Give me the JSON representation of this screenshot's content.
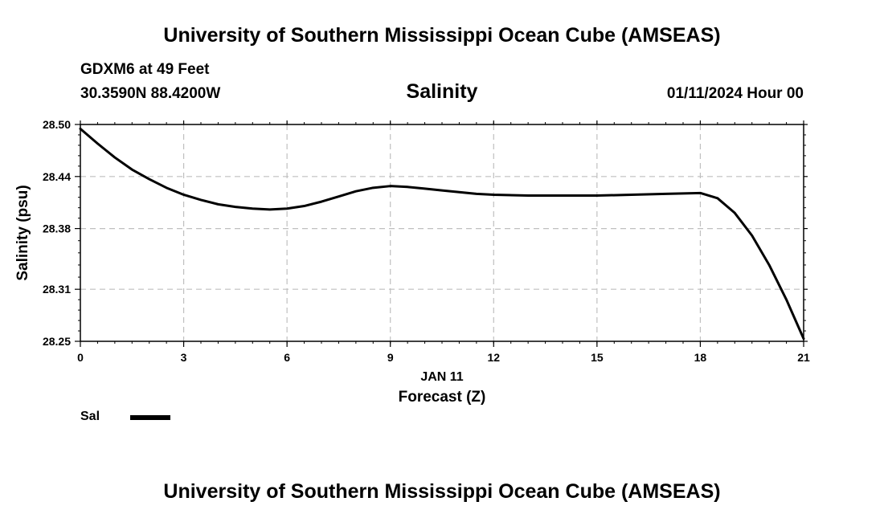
{
  "header": {
    "title": "University of Southern Mississippi Ocean Cube (AMSEAS)",
    "station": "GDXM6 at 49 Feet",
    "coords": "30.3590N  88.4200W",
    "run_time": "01/11/2024 Hour 00"
  },
  "footer": {
    "title": "University of Southern Mississippi Ocean Cube (AMSEAS)"
  },
  "legend": {
    "label": "Sal"
  },
  "colors": {
    "line": "#000000",
    "grid": "#bfbfbf"
  },
  "chart_data": {
    "type": "line",
    "title": "Salinity",
    "xlabel": "Forecast (Z)",
    "date_label": "JAN 11",
    "ylabel": "Salinity (psu)",
    "xlim": [
      0,
      21
    ],
    "ylim": [
      28.25,
      28.5
    ],
    "x_ticks": [
      0,
      3,
      6,
      9,
      12,
      15,
      18,
      21
    ],
    "y_ticks": [
      28.25,
      28.31,
      28.38,
      28.44,
      28.5
    ],
    "y_tick_labels": [
      "28.25",
      "28.31",
      "28.38",
      "28.44",
      "28.50"
    ],
    "grid": true,
    "series": [
      {
        "name": "Sal",
        "x": [
          0,
          0.5,
          1,
          1.5,
          2,
          2.5,
          3,
          3.5,
          4,
          4.5,
          5,
          5.5,
          6,
          6.5,
          7,
          7.5,
          8,
          8.5,
          9,
          9.5,
          10,
          10.5,
          11,
          11.5,
          12,
          13,
          14,
          15,
          16,
          17,
          18,
          18.5,
          19,
          19.5,
          20,
          20.5,
          21
        ],
        "values": [
          28.495,
          28.478,
          28.462,
          28.448,
          28.437,
          28.427,
          28.419,
          28.413,
          28.408,
          28.405,
          28.403,
          28.402,
          28.403,
          28.406,
          28.411,
          28.417,
          28.423,
          28.427,
          28.429,
          28.428,
          28.426,
          28.424,
          28.422,
          28.42,
          28.419,
          28.418,
          28.418,
          28.418,
          28.419,
          28.42,
          28.421,
          28.415,
          28.398,
          28.372,
          28.338,
          28.298,
          28.253
        ]
      }
    ]
  }
}
